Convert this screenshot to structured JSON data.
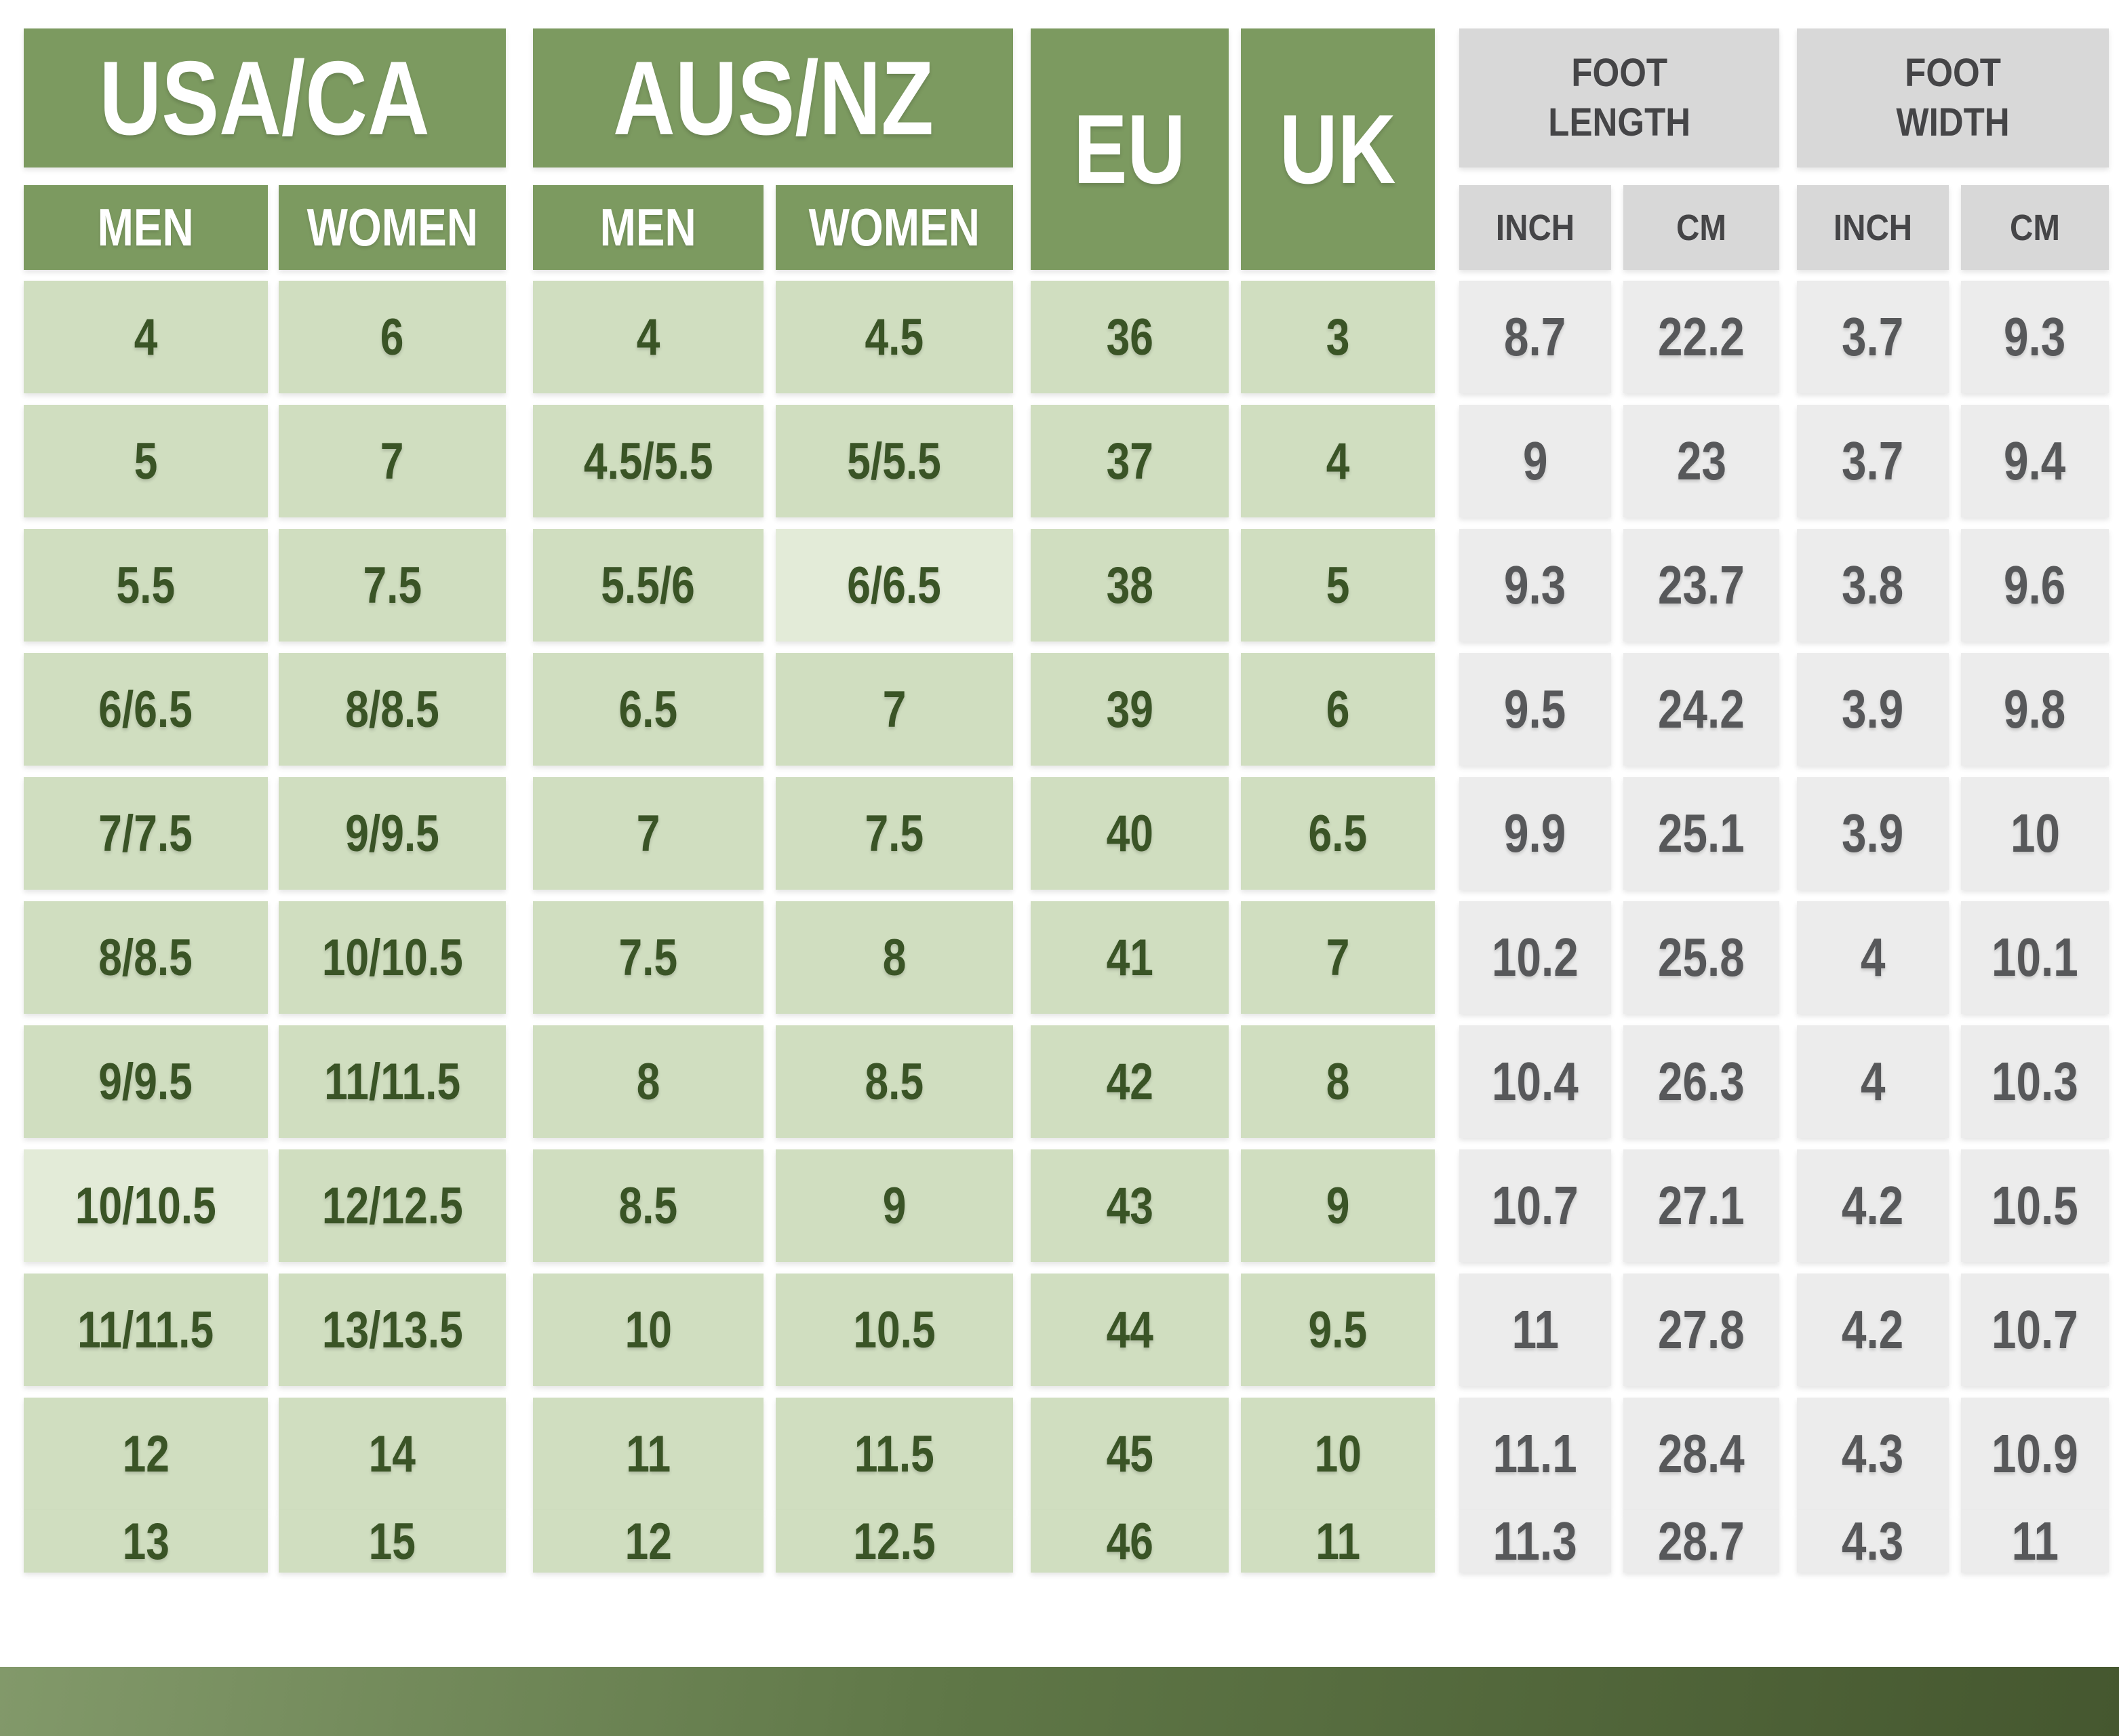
{
  "colors": {
    "header_green": "#7c9a60",
    "cell_green": "#d0dec0",
    "cell_green_light": "#e3ebd8",
    "header_gray": "#d8d8d8",
    "cell_gray": "#ececec",
    "text_green": "#3a5426",
    "text_gray": "#57585a",
    "text_dark": "#454547",
    "text_white": "#ffffff",
    "footer_light": "#82996a",
    "footer_dark": "#45572f"
  },
  "chart_data": {
    "type": "table",
    "column_groups": [
      {
        "label": "USA/CA",
        "span": 2
      },
      {
        "label": "AUS/NZ",
        "span": 2
      },
      {
        "label": "EU",
        "span": 1,
        "rowspan": 2
      },
      {
        "label": "UK",
        "span": 1,
        "rowspan": 2
      },
      {
        "label": "FOOT\nLENGTH",
        "span": 2
      },
      {
        "label": "FOOT\nWIDTH",
        "span": 2
      }
    ],
    "sub_headers": [
      "MEN",
      "WOMEN",
      "MEN",
      "WOMEN",
      "INCH",
      "CM",
      "INCH",
      "CM"
    ],
    "columns": [
      "USA/CA MEN",
      "USA/CA WOMEN",
      "AUS/NZ MEN",
      "AUS/NZ WOMEN",
      "EU",
      "UK",
      "FOOT LENGTH INCH",
      "FOOT LENGTH CM",
      "FOOT WIDTH INCH",
      "FOOT WIDTH CM"
    ],
    "rows": [
      [
        "4",
        "6",
        "4",
        "4.5",
        "36",
        "3",
        "8.7",
        "22.2",
        "3.7",
        "9.3"
      ],
      [
        "5",
        "7",
        "4.5/5.5",
        "5/5.5",
        "37",
        "4",
        "9",
        "23",
        "3.7",
        "9.4"
      ],
      [
        "5.5",
        "7.5",
        "5.5/6",
        "6/6.5",
        "38",
        "5",
        "9.3",
        "23.7",
        "3.8",
        "9.6"
      ],
      [
        "6/6.5",
        "8/8.5",
        "6.5",
        "7",
        "39",
        "6",
        "9.5",
        "24.2",
        "3.9",
        "9.8"
      ],
      [
        "7/7.5",
        "9/9.5",
        "7",
        "7.5",
        "40",
        "6.5",
        "9.9",
        "25.1",
        "3.9",
        "10"
      ],
      [
        "8/8.5",
        "10/10.5",
        "7.5",
        "8",
        "41",
        "7",
        "10.2",
        "25.8",
        "4",
        "10.1"
      ],
      [
        "9/9.5",
        "11/11.5",
        "8",
        "8.5",
        "42",
        "8",
        "10.4",
        "26.3",
        "4",
        "10.3"
      ],
      [
        "10/10.5",
        "12/12.5",
        "8.5",
        "9",
        "43",
        "9",
        "10.7",
        "27.1",
        "4.2",
        "10.5"
      ],
      [
        "11/11.5",
        "13/13.5",
        "10",
        "10.5",
        "44",
        "9.5",
        "11",
        "27.8",
        "4.2",
        "10.7"
      ],
      [
        "12",
        "14",
        "11",
        "11.5",
        "45",
        "10",
        "11.1",
        "28.4",
        "4.3",
        "10.9"
      ],
      [
        "13",
        "15",
        "12",
        "12.5",
        "46",
        "11",
        "11.3",
        "28.7",
        "4.3",
        "11"
      ]
    ],
    "highlight_light_cells": [
      [
        2,
        3
      ],
      [
        7,
        0
      ]
    ]
  }
}
